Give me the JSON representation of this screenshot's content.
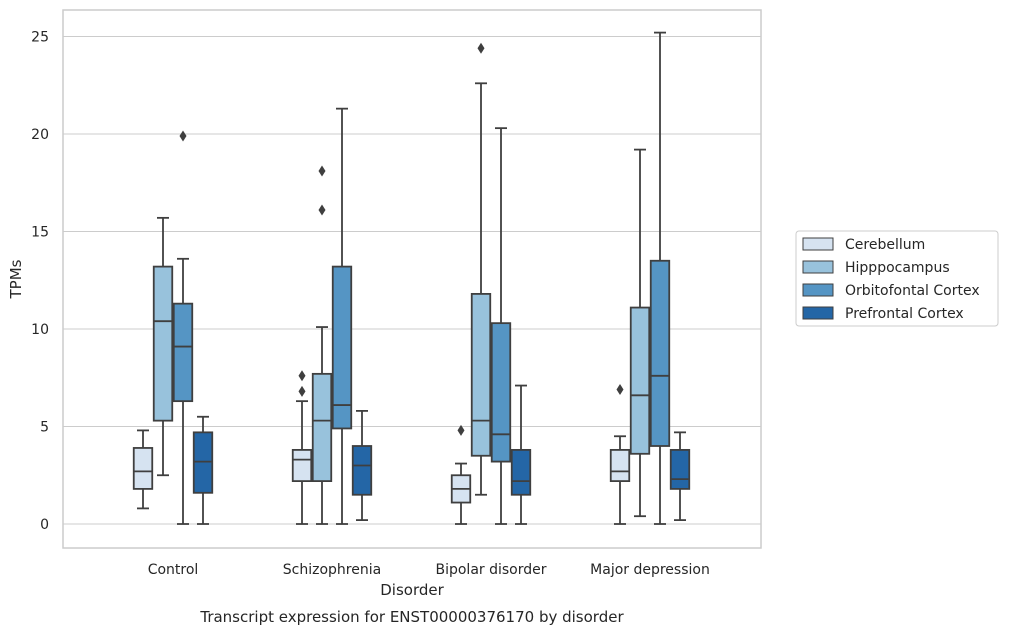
{
  "chart_data": {
    "type": "box",
    "caption": "Transcript expression for ENST00000376170 by disorder",
    "xlabel": "Disorder",
    "ylabel": "TPMs",
    "ylim": [
      -1.2,
      26.4
    ],
    "yticks": [
      0,
      5,
      10,
      15,
      20,
      25
    ],
    "grid": "horizontal",
    "legend_position": "right",
    "categories": [
      "Control",
      "Schizophrenia",
      "Bipolar disorder",
      "Major depression"
    ],
    "series": [
      {
        "name": "Cerebellum",
        "color": "#d6e3f1",
        "boxes": [
          {
            "q1": 1.8,
            "median": 2.7,
            "q3": 3.9,
            "whisker_low": 0.8,
            "whisker_high": 4.8,
            "outliers": []
          },
          {
            "q1": 2.2,
            "median": 3.3,
            "q3": 3.8,
            "whisker_low": 0.0,
            "whisker_high": 6.3,
            "outliers": [
              6.8,
              7.6
            ]
          },
          {
            "q1": 1.1,
            "median": 1.8,
            "q3": 2.5,
            "whisker_low": 0.0,
            "whisker_high": 3.1,
            "outliers": [
              4.8
            ]
          },
          {
            "q1": 2.2,
            "median": 2.7,
            "q3": 3.8,
            "whisker_low": 0.0,
            "whisker_high": 4.5,
            "outliers": [
              6.9
            ]
          }
        ]
      },
      {
        "name": "Hipppocampus",
        "color": "#98c2dc",
        "boxes": [
          {
            "q1": 5.3,
            "median": 10.4,
            "q3": 13.2,
            "whisker_low": 2.5,
            "whisker_high": 15.7,
            "outliers": []
          },
          {
            "q1": 2.2,
            "median": 5.3,
            "q3": 7.7,
            "whisker_low": 0.0,
            "whisker_high": 10.1,
            "outliers": [
              16.1,
              18.1
            ]
          },
          {
            "q1": 3.5,
            "median": 5.3,
            "q3": 11.8,
            "whisker_low": 1.5,
            "whisker_high": 22.6,
            "outliers": [
              24.4
            ]
          },
          {
            "q1": 3.6,
            "median": 6.6,
            "q3": 11.1,
            "whisker_low": 0.4,
            "whisker_high": 19.2,
            "outliers": []
          }
        ]
      },
      {
        "name": "Orbitofontal Cortex",
        "color": "#5595c4",
        "boxes": [
          {
            "q1": 6.3,
            "median": 9.1,
            "q3": 11.3,
            "whisker_low": 0.0,
            "whisker_high": 13.6,
            "outliers": [
              19.9
            ]
          },
          {
            "q1": 4.9,
            "median": 6.1,
            "q3": 13.2,
            "whisker_low": 0.0,
            "whisker_high": 21.3,
            "outliers": []
          },
          {
            "q1": 3.2,
            "median": 4.6,
            "q3": 10.3,
            "whisker_low": 0.0,
            "whisker_high": 20.3,
            "outliers": []
          },
          {
            "q1": 4.0,
            "median": 7.6,
            "q3": 13.5,
            "whisker_low": 0.0,
            "whisker_high": 25.2,
            "outliers": []
          }
        ]
      },
      {
        "name": "Prefrontal Cortex",
        "color": "#2466a6",
        "boxes": [
          {
            "q1": 1.6,
            "median": 3.2,
            "q3": 4.7,
            "whisker_low": 0.0,
            "whisker_high": 5.5,
            "outliers": []
          },
          {
            "q1": 1.5,
            "median": 3.0,
            "q3": 4.0,
            "whisker_low": 0.2,
            "whisker_high": 5.8,
            "outliers": []
          },
          {
            "q1": 1.5,
            "median": 2.2,
            "q3": 3.8,
            "whisker_low": 0.0,
            "whisker_high": 7.1,
            "outliers": []
          },
          {
            "q1": 1.8,
            "median": 2.3,
            "q3": 3.8,
            "whisker_low": 0.2,
            "whisker_high": 4.7,
            "outliers": []
          }
        ]
      }
    ]
  }
}
